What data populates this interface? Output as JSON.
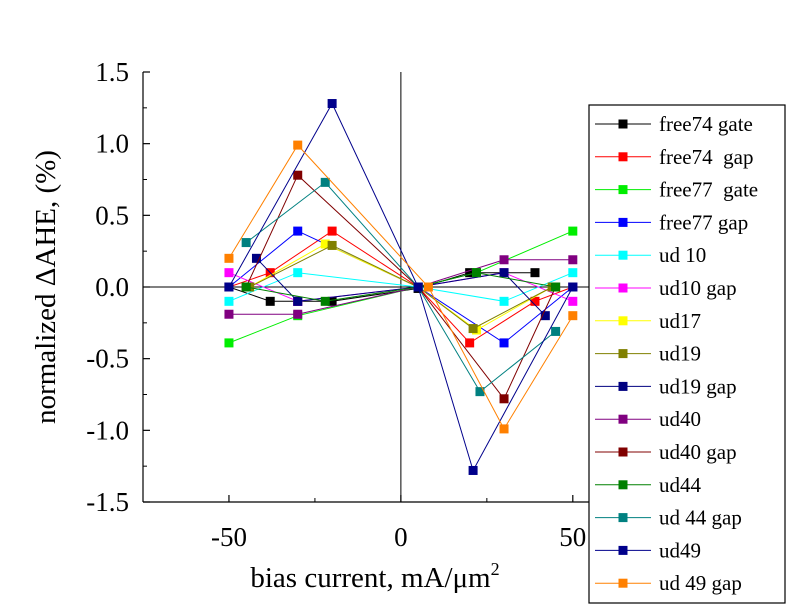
{
  "chart_data": {
    "type": "line",
    "title": "",
    "xlabel": "bias current, mA/μm",
    "xlabel_sup": "2",
    "ylabel": "normalized ΔAHE, (%)",
    "xlim": [
      -75,
      55
    ],
    "ylim": [
      -1.5,
      1.5
    ],
    "x_ticks": [
      -50,
      0,
      50
    ],
    "x_tick_labels": [
      "-50",
      "0",
      "50"
    ],
    "y_ticks": [
      1.5,
      1.0,
      0.5,
      0.0,
      -0.5,
      -1.0,
      -1.5
    ],
    "y_tick_labels": [
      "1.5",
      "1.0",
      "0.5",
      "0.0",
      "-0.5",
      "-1.0",
      "-1.5"
    ],
    "grid": false,
    "zero_lines": true,
    "legend_placement": "right",
    "series": [
      {
        "name": "free74 gate",
        "color": "#000000",
        "x": [
          -50,
          -38,
          -30,
          -20,
          5,
          20,
          39
        ],
        "y": [
          0,
          -0.1,
          -0.1,
          -0.1,
          -0.01,
          0.1,
          0.1
        ]
      },
      {
        "name": "free74  gap",
        "color": "#ff0000",
        "x": [
          -50,
          -38,
          -20,
          5,
          20,
          39,
          50
        ],
        "y": [
          0,
          0.1,
          0.39,
          0,
          -0.39,
          -0.1,
          0
        ]
      },
      {
        "name": "free77  gate",
        "color": "#00ee00",
        "x": [
          -50,
          -30,
          5,
          22,
          50
        ],
        "y": [
          -0.39,
          -0.2,
          0,
          0.1,
          0.39
        ]
      },
      {
        "name": "free77 gap",
        "color": "#0000ff",
        "x": [
          -50,
          -30,
          5,
          30,
          50
        ],
        "y": [
          0,
          0.39,
          0,
          -0.39,
          0
        ]
      },
      {
        "name": "ud 10",
        "color": "#00ffff",
        "x": [
          -50,
          -30,
          5,
          30,
          50
        ],
        "y": [
          -0.1,
          0.1,
          0,
          -0.1,
          0.1
        ]
      },
      {
        "name": "ud10 gap",
        "color": "#ff00ff",
        "x": [
          -50,
          -30,
          5,
          30,
          50
        ],
        "y": [
          0.1,
          -0.1,
          0,
          0.1,
          -0.1
        ]
      },
      {
        "name": "ud17",
        "color": "#ffff00",
        "x": [
          -44,
          -22,
          5,
          22,
          44
        ],
        "y": [
          0,
          0.3,
          0,
          -0.3,
          0
        ]
      },
      {
        "name": "ud19",
        "color": "#808000",
        "x": [
          -44,
          -20,
          5,
          21,
          44
        ],
        "y": [
          0,
          0.29,
          0,
          -0.29,
          0
        ]
      },
      {
        "name": "ud19 gap",
        "color": "#000080",
        "x": [
          -42,
          -30,
          5,
          30,
          42
        ],
        "y": [
          0.2,
          -0.1,
          0,
          0.1,
          -0.2
        ]
      },
      {
        "name": "ud40",
        "color": "#800080",
        "x": [
          -50,
          -30,
          5,
          30,
          50
        ],
        "y": [
          -0.19,
          -0.19,
          0,
          0.19,
          0.19
        ]
      },
      {
        "name": "ud40 gap",
        "color": "#800000",
        "x": [
          -45,
          -30,
          5,
          30,
          45
        ],
        "y": [
          0,
          0.78,
          0,
          -0.78,
          0
        ]
      },
      {
        "name": "ud44",
        "color": "#008000",
        "x": [
          -45,
          -22,
          5,
          22,
          45
        ],
        "y": [
          0,
          -0.1,
          0,
          0.1,
          0
        ]
      },
      {
        "name": "ud 44 gap",
        "color": "#008080",
        "x": [
          -45,
          -22,
          5,
          23,
          45
        ],
        "y": [
          0.31,
          0.73,
          0,
          -0.73,
          -0.31
        ]
      },
      {
        "name": "ud49",
        "color": "#00008b",
        "x": [
          -50,
          -20,
          5,
          21,
          50
        ],
        "y": [
          0,
          1.28,
          0,
          -1.28,
          0
        ]
      },
      {
        "name": "ud 49 gap",
        "color": "#ff8000",
        "x": [
          -50,
          -30,
          8,
          30,
          50
        ],
        "y": [
          0.2,
          0.99,
          0,
          -0.99,
          -0.2
        ]
      }
    ]
  }
}
